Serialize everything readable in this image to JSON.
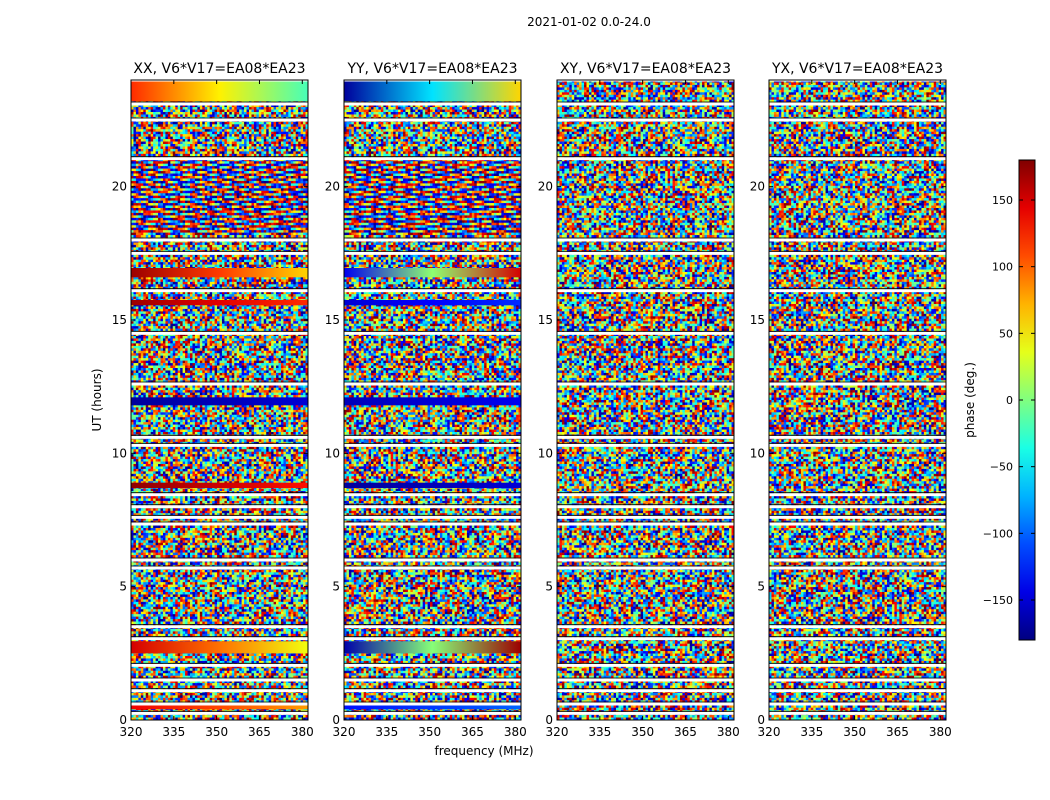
{
  "chart_data": {
    "type": "heatmap",
    "suptitle": "2021-01-02 0.0-24.0",
    "xlabel": "frequency (MHz)",
    "ylabel": "UT (hours)",
    "xlim": [
      320,
      382
    ],
    "ylim": [
      0,
      24
    ],
    "xticks": [
      320,
      335,
      350,
      365,
      380
    ],
    "xtick_labels": [
      "320",
      "335",
      "350",
      "365",
      "380"
    ],
    "yticks": [
      0,
      5,
      10,
      15,
      20
    ],
    "ytick_labels": [
      "0",
      "5",
      "10",
      "15",
      "20"
    ],
    "colorbar": {
      "label": "phase (deg.)",
      "range": [
        -180,
        180
      ],
      "colormap": "jet",
      "ticks": [
        -150,
        -100,
        -50,
        0,
        50,
        100,
        150
      ],
      "tick_labels": [
        "−150",
        "−100",
        "−50",
        "0",
        "50",
        "100",
        "150"
      ]
    },
    "panels": [
      {
        "title": "XX, V6*V17=EA08*EA23",
        "pattern": "noise",
        "coherent_bands": [
          {
            "t0": 23.2,
            "t1": 23.95,
            "phase_start": 120,
            "phase_end": -20
          },
          {
            "t0": 16.6,
            "t1": 16.95,
            "phase_start": 170,
            "phase_end": 60
          },
          {
            "t0": 15.55,
            "t1": 15.75,
            "phase_start": 170,
            "phase_end": 120
          },
          {
            "t0": 11.8,
            "t1": 12.1,
            "phase_start": -170,
            "phase_end": -150
          },
          {
            "t0": 8.7,
            "t1": 8.9,
            "phase_start": 175,
            "phase_end": 130
          },
          {
            "t0": 2.5,
            "t1": 2.95,
            "phase_start": 150,
            "phase_end": 40
          },
          {
            "t0": 0.4,
            "t1": 0.55,
            "phase_start": 140,
            "phase_end": 80
          }
        ],
        "fringe_band": [
          18.2,
          21.0
        ],
        "gaps": [
          0.25,
          0.6,
          1.1,
          1.5,
          2.05,
          3.05,
          3.5,
          5.7,
          6.0,
          7.35,
          7.6,
          8.0,
          8.45,
          10.3,
          10.6,
          12.6,
          14.5,
          16.1,
          17.5,
          18.0,
          21.05,
          22.5,
          23.1,
          24.0
        ],
        "gap_phase": [
          -5,
          -10,
          10,
          0,
          60,
          0,
          0,
          55,
          20,
          0,
          0,
          0,
          0,
          0,
          0,
          0,
          0,
          40,
          0,
          0,
          0,
          0,
          0,
          0
        ]
      },
      {
        "title": "YY, V6*V17=EA08*EA23",
        "pattern": "noise",
        "coherent_bands": [
          {
            "t0": 23.2,
            "t1": 23.95,
            "phase_start": -170,
            "phase_end": 60
          },
          {
            "t0": 16.6,
            "t1": 16.95,
            "phase_start": -140,
            "phase_end": 150
          },
          {
            "t0": 15.55,
            "t1": 15.75,
            "phase_start": -150,
            "phase_end": -120
          },
          {
            "t0": 11.8,
            "t1": 12.1,
            "phase_start": -160,
            "phase_end": -140
          },
          {
            "t0": 8.7,
            "t1": 8.9,
            "phase_start": -170,
            "phase_end": -150
          },
          {
            "t0": 2.5,
            "t1": 2.95,
            "phase_start": -165,
            "phase_end": 170
          },
          {
            "t0": 0.4,
            "t1": 0.55,
            "phase_start": -130,
            "phase_end": -100
          }
        ],
        "fringe_band": [
          18.2,
          21.0
        ],
        "gaps": [
          0.25,
          0.6,
          1.1,
          1.5,
          2.05,
          3.05,
          3.5,
          5.7,
          6.0,
          7.35,
          7.6,
          8.0,
          8.45,
          10.3,
          10.6,
          12.6,
          14.5,
          16.1,
          17.5,
          18.0,
          21.05,
          22.5,
          23.1,
          24.0
        ],
        "gap_phase": [
          -5,
          0,
          10,
          0,
          0,
          0,
          0,
          175,
          20,
          0,
          0,
          0,
          0,
          0,
          0,
          0,
          0,
          0,
          0,
          0,
          0,
          0,
          0,
          0
        ]
      },
      {
        "title": "XY, V6*V17=EA08*EA23",
        "pattern": "noise",
        "coherent_bands": [],
        "fringe_band": [
          18.2,
          21.0
        ],
        "gaps": [
          0.25,
          0.6,
          1.1,
          1.5,
          2.05,
          3.05,
          3.5,
          5.7,
          6.0,
          7.35,
          7.6,
          8.0,
          8.45,
          10.3,
          10.6,
          12.6,
          14.5,
          16.1,
          17.5,
          18.0,
          21.05,
          22.5,
          23.1,
          24.0
        ],
        "gap_phase": [
          0,
          0,
          0,
          0,
          0,
          0,
          0,
          0,
          0,
          0,
          0,
          0,
          0,
          0,
          0,
          0,
          0,
          0,
          0,
          0,
          0,
          0,
          0,
          0
        ]
      },
      {
        "title": "YX, V6*V17=EA08*EA23",
        "pattern": "noise",
        "coherent_bands": [],
        "fringe_band": [
          18.2,
          21.0
        ],
        "gaps": [
          0.25,
          0.6,
          1.1,
          1.5,
          2.05,
          3.05,
          3.5,
          5.7,
          6.0,
          7.35,
          7.6,
          8.0,
          8.45,
          10.3,
          10.6,
          12.6,
          14.5,
          16.1,
          17.5,
          18.0,
          21.05,
          22.5,
          23.1,
          24.0
        ],
        "gap_phase": [
          0,
          0,
          0,
          0,
          0,
          0,
          0,
          0,
          0,
          0,
          0,
          0,
          0,
          0,
          0,
          0,
          0,
          0,
          0,
          0,
          0,
          0,
          0,
          0
        ]
      }
    ]
  }
}
